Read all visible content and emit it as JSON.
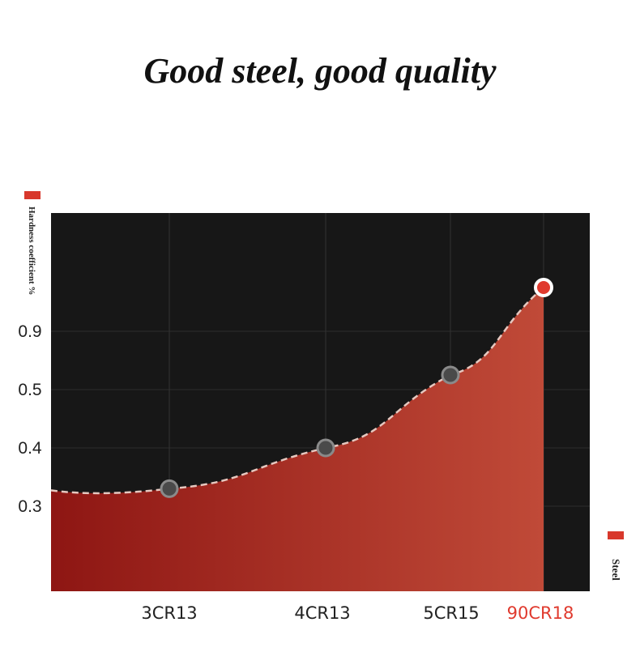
{
  "chart_data": {
    "type": "area",
    "title": "Good steel, good quality",
    "y_label": "Hardness coefficient %",
    "legend": "Steel",
    "categories": [
      "3CR13",
      "4CR13",
      "5CR15",
      "90CR18"
    ],
    "values": [
      0.33,
      0.4,
      0.6,
      1.2
    ],
    "yticks": [
      0.3,
      0.4,
      0.5,
      0.9
    ],
    "color": "#b3281f",
    "highlight_color": "#e03a2e"
  }
}
